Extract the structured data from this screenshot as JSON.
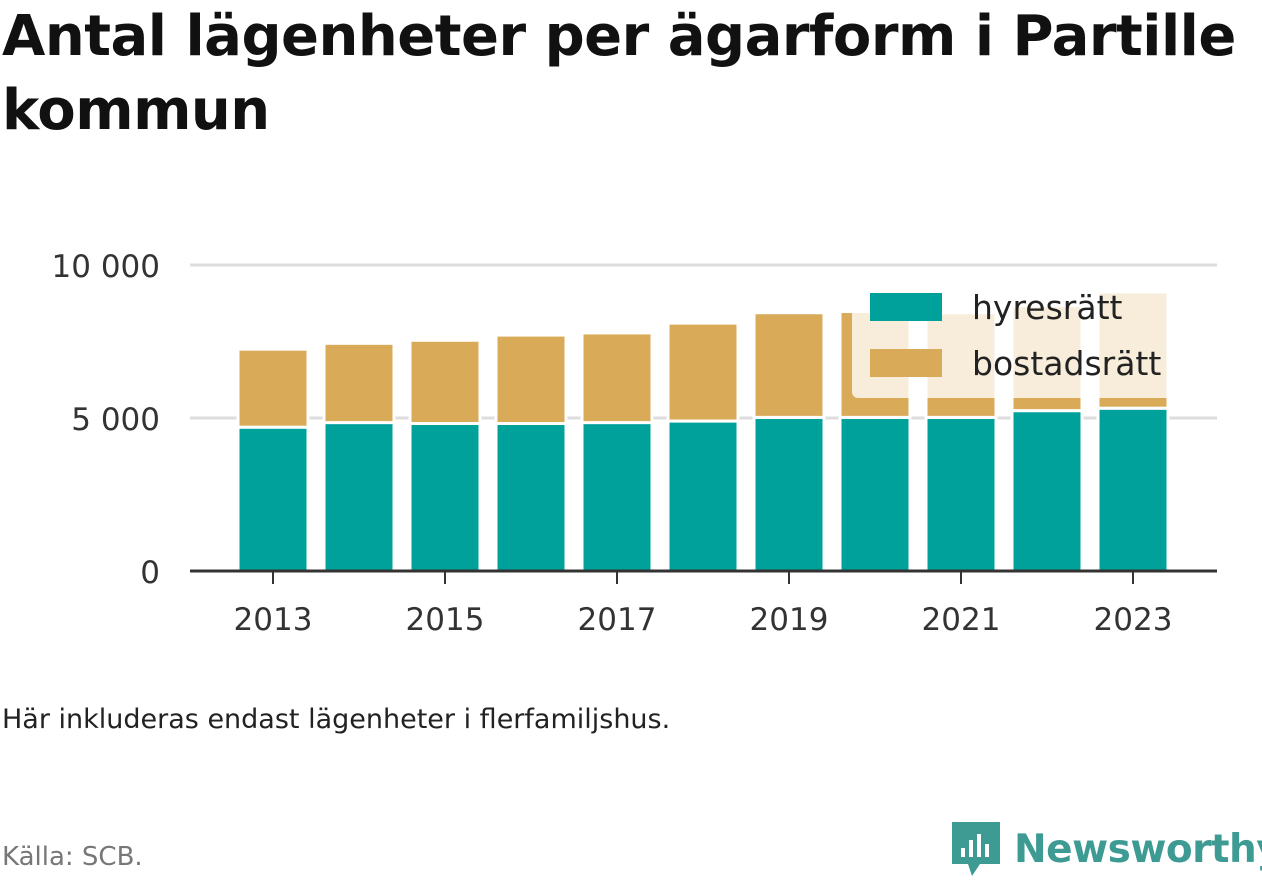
{
  "title": "Antal lägenheter per ägarform i Partille kommun",
  "note": "Här inkluderas endast lägenheter i flerfamiljshus.",
  "source": "Källa: SCB.",
  "brand": {
    "name": "Newsworthy",
    "icon": "newsworthy-logo-icon",
    "color": "#3d9b94"
  },
  "colors": {
    "hyresratt": "#00a19a",
    "bostadsratt": "#d9ab58",
    "grid": "#dddddd",
    "axis": "#333333"
  },
  "chart_data": {
    "type": "bar",
    "stacked": true,
    "categories": [
      "2013",
      "2014",
      "2015",
      "2016",
      "2017",
      "2018",
      "2019",
      "2020",
      "2021",
      "2022",
      "2023"
    ],
    "x_tick_labels": [
      "2013",
      "2015",
      "2017",
      "2019",
      "2021",
      "2023"
    ],
    "series": [
      {
        "name": "hyresrätt",
        "color": "#00a19a",
        "values": [
          4700,
          4850,
          4820,
          4820,
          4850,
          4900,
          5020,
          5020,
          5020,
          5240,
          5320
        ]
      },
      {
        "name": "bostadsrätt",
        "color": "#d9ab58",
        "values": [
          2550,
          2590,
          2720,
          2890,
          2930,
          3200,
          3420,
          3460,
          3420,
          3430,
          3800
        ]
      }
    ],
    "ylim": [
      0,
      10000
    ],
    "y_ticks": [
      0,
      5000,
      10000
    ],
    "y_tick_labels": [
      "0",
      "5 000",
      "10 000"
    ],
    "grid": true,
    "legend": "top-right",
    "xlabel": "",
    "ylabel": ""
  }
}
